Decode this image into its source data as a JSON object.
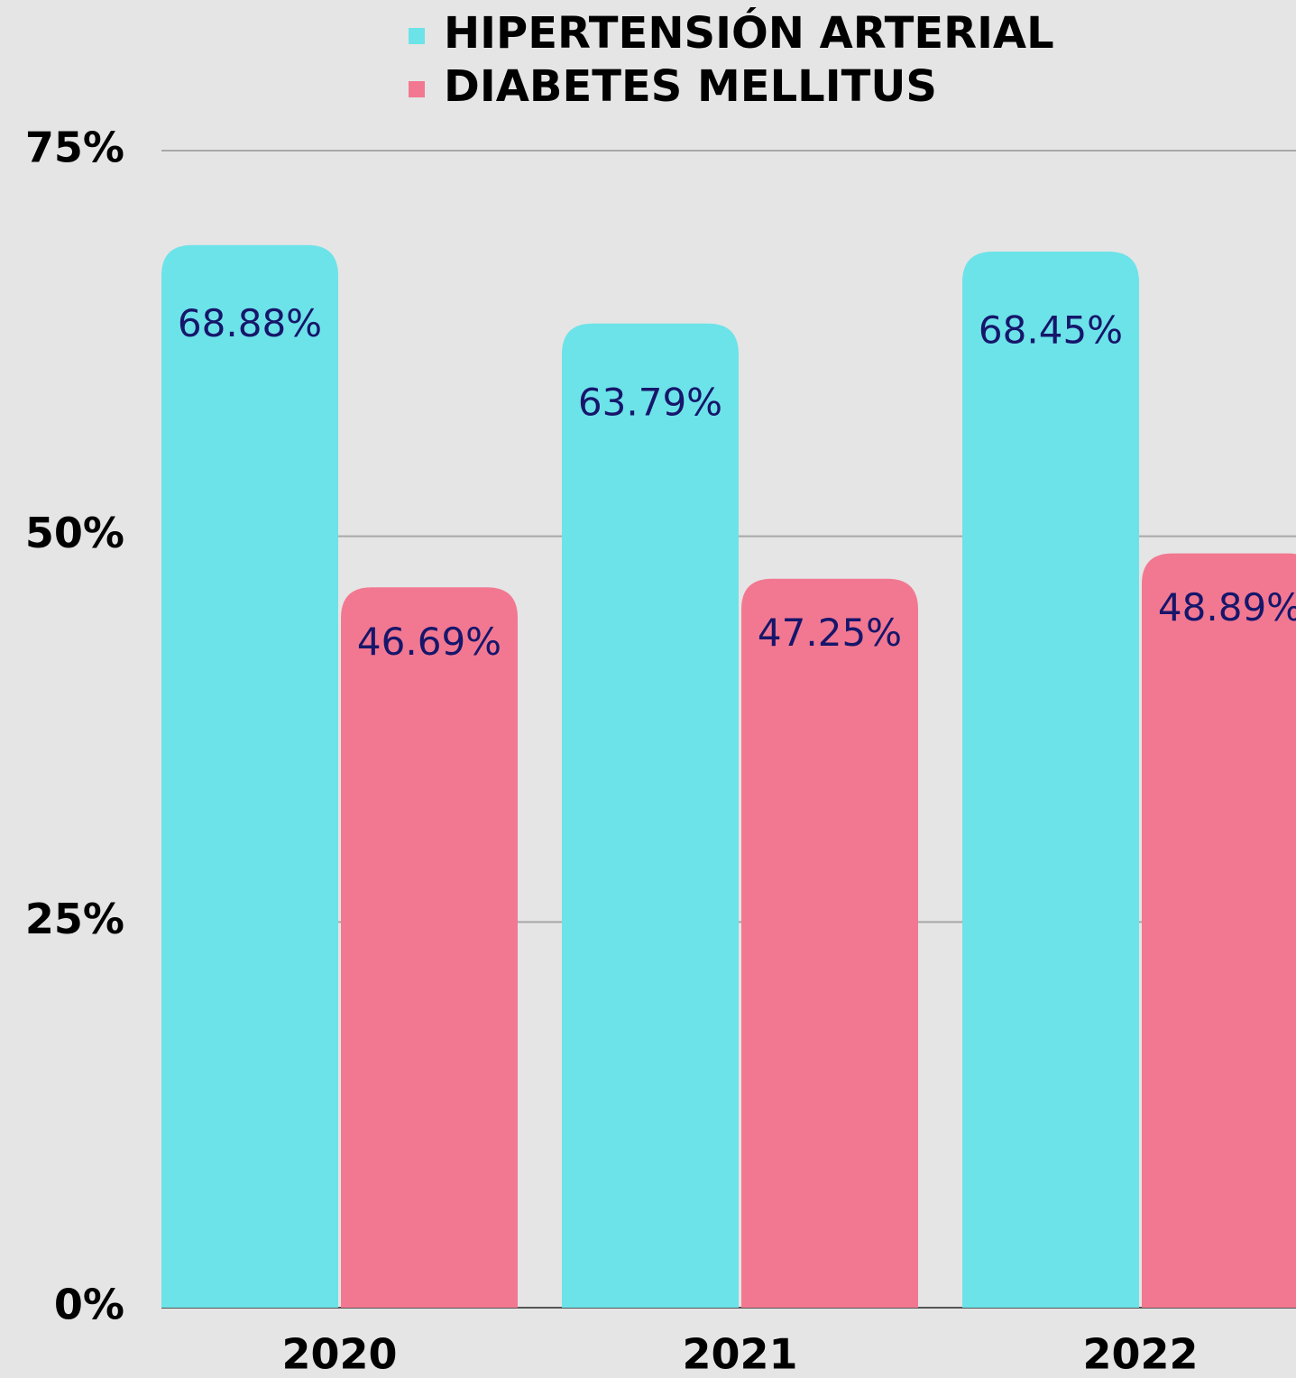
{
  "chart_data": {
    "type": "bar",
    "categories": [
      "2020",
      "2021",
      "2022"
    ],
    "series": [
      {
        "name": "HIPERTENSIÓN ARTERIAL",
        "color": "#6ce3e8",
        "values": [
          68.88,
          63.79,
          68.45
        ],
        "value_labels": [
          "68.88%",
          "63.79%",
          "68.45%"
        ]
      },
      {
        "name": "DIABETES MELLITUS",
        "color": "#f27891",
        "values": [
          46.69,
          47.25,
          48.89
        ],
        "value_labels": [
          "46.69%",
          "47.25%",
          "48.89%"
        ]
      }
    ],
    "ylim": [
      0,
      75
    ],
    "yticks": [
      {
        "value": 0,
        "label": "0%"
      },
      {
        "value": 25,
        "label": "25%"
      },
      {
        "value": 50,
        "label": "50%"
      },
      {
        "value": 75,
        "label": "75%"
      }
    ],
    "grid": true
  }
}
